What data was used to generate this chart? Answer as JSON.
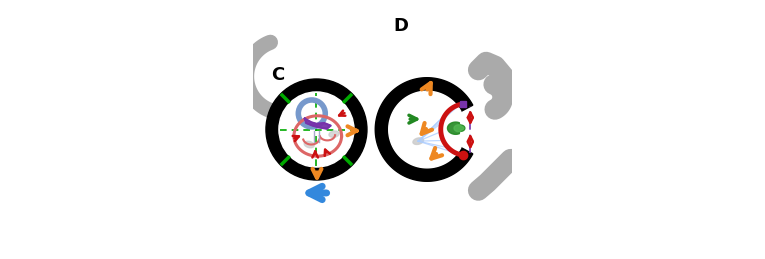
{
  "bg_color": "#ffffff",
  "label_C": "C",
  "label_D": "D",
  "gray_color": "#aaaaaa",
  "black_color": "#000000",
  "white_color": "#ffffff",
  "green_color": "#00aa00",
  "blue_ring_color": "#7799cc",
  "purple_color": "#7733aa",
  "pink_color": "#dd6666",
  "orange_color": "#ee8822",
  "red_color": "#cc1111",
  "blue_arrow_color": "#3388dd",
  "light_blue_color": "#aaccff",
  "dark_green_color": "#228822",
  "light_green_color": "#55bb55"
}
